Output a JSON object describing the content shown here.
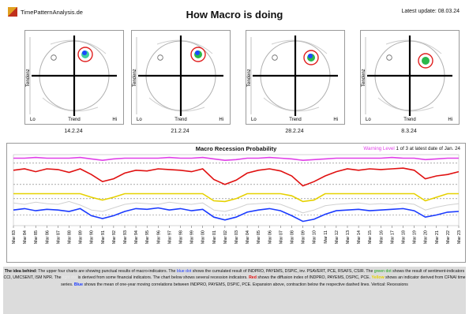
{
  "header": {
    "site": "TimePatternAnalysis.de",
    "title": "How Macro is doing",
    "update": "Latest update: 08.03.24"
  },
  "quadrants": [
    {
      "date": "14.2.24",
      "fill": "#3fd0a0",
      "blue": true
    },
    {
      "date": "21.2.24",
      "fill": "#2ab84a",
      "blue": true
    },
    {
      "date": "28.2.24",
      "fill": "#2ab84a",
      "blue": true
    },
    {
      "date": "8.3.24",
      "fill": "#2ab84a",
      "blue": false
    }
  ],
  "quad_labels": {
    "x_lo": "Lo",
    "x_mid": "Trend",
    "x_hi": "Hi",
    "y": "Tendenz"
  },
  "recession": {
    "title": "Macro Recession Probability",
    "legend_warn": "Warning Level",
    "legend_rest": "1 of 3 at latest date of Jan. 24"
  },
  "chart_data": {
    "type": "line",
    "title": "Macro Recession Probability",
    "x": [
      "Mar 83",
      "Mar 84",
      "Mar 85",
      "Mar 86",
      "Mar 87",
      "Mar 88",
      "Mar 89",
      "Mar 90",
      "Mar 91",
      "Mar 92",
      "Mar 93",
      "Mar 94",
      "Mar 95",
      "Mar 96",
      "Mar 97",
      "Mar 98",
      "Mar 99",
      "Mar 00",
      "Mar 01",
      "Mar 02",
      "Mar 03",
      "Mar 04",
      "Mar 05",
      "Mar 06",
      "Mar 07",
      "Mar 08",
      "Mar 09",
      "Mar 10",
      "Mar 11",
      "Mar 12",
      "Mar 13",
      "Mar 14",
      "Mar 15",
      "Mar 16",
      "Mar 17",
      "Mar 18",
      "Mar 19",
      "Mar 20",
      "Mar 21",
      "Mar 22",
      "Mar 23"
    ],
    "series": [
      {
        "color": "#e040e8",
        "values": [
          95,
          95,
          96,
          95,
          95,
          95,
          96,
          94,
          92,
          94,
          95,
          95,
          95,
          95,
          96,
          95,
          95,
          96,
          94,
          92,
          93,
          95,
          95,
          96,
          95,
          94,
          92,
          93,
          94,
          95,
          95,
          95,
          95,
          95,
          96,
          95,
          95,
          93,
          94,
          95,
          95
        ]
      },
      {
        "color": "#e01010",
        "values": [
          78,
          80,
          76,
          80,
          79,
          75,
          80,
          72,
          62,
          66,
          74,
          78,
          77,
          80,
          79,
          78,
          76,
          80,
          65,
          58,
          64,
          74,
          78,
          80,
          77,
          70,
          56,
          62,
          70,
          76,
          80,
          78,
          80,
          79,
          80,
          81,
          78,
          66,
          70,
          72,
          76
        ]
      },
      {
        "color": "#e6d100",
        "values": [
          45,
          45,
          45,
          45,
          45,
          45,
          45,
          40,
          36,
          40,
          45,
          45,
          45,
          45,
          45,
          45,
          45,
          45,
          35,
          34,
          38,
          45,
          45,
          45,
          45,
          42,
          34,
          36,
          45,
          45,
          45,
          45,
          45,
          45,
          45,
          45,
          45,
          35,
          40,
          45,
          45
        ]
      },
      {
        "color": "#d0d0d0",
        "values": [
          32,
          30,
          33,
          31,
          30,
          34,
          29,
          22,
          20,
          25,
          30,
          32,
          31,
          30,
          33,
          31,
          30,
          32,
          22,
          20,
          24,
          30,
          31,
          32,
          30,
          24,
          18,
          22,
          28,
          30,
          31,
          32,
          30,
          31,
          30,
          32,
          30,
          22,
          26,
          29,
          31
        ]
      },
      {
        "color": "#1a3aff",
        "values": [
          22,
          24,
          21,
          23,
          22,
          20,
          24,
          14,
          10,
          14,
          20,
          24,
          23,
          25,
          22,
          24,
          21,
          23,
          12,
          8,
          12,
          19,
          22,
          24,
          21,
          14,
          6,
          9,
          16,
          21,
          22,
          23,
          21,
          22,
          23,
          24,
          21,
          12,
          15,
          19,
          20
        ]
      }
    ],
    "ylim": [
      0,
      100
    ],
    "warning_levels": [
      88,
      58,
      38,
      15
    ]
  },
  "footer": {
    "p1": "The idea behind:",
    "p2": " The upper four charts are showing punctual results of macro-indicators. The ",
    "blue": "blue dot",
    "p3": " shows the cumulated result of INDPRO, PAYEMS, DSPIC, inv. PSAVERT, PCE, RSAFS, CSIR. The ",
    "green": "green dot",
    "p4": " shows the result of sentiment-indicators CCI, UMCSENT, ISM NPR. The ",
    "light": "light dot",
    "p5": " is derived from some financial indicators. The chart below shows several recession indicators. ",
    "red": "Red",
    "p6": " shows the diffusion index of INDPRO, PAYEMS, DSPIC, PCE. ",
    "yellow": "Yellow",
    "p7": " shows an indicator derived from CFNAI time series. ",
    "blue2": "Blue",
    "p8": " shows the mean of one-year moving correlations between INDPRO, PAYEMS, DSPIC, PCE. Expansion above, contraction below the respective dashed lines. Vertical: Recessions"
  }
}
